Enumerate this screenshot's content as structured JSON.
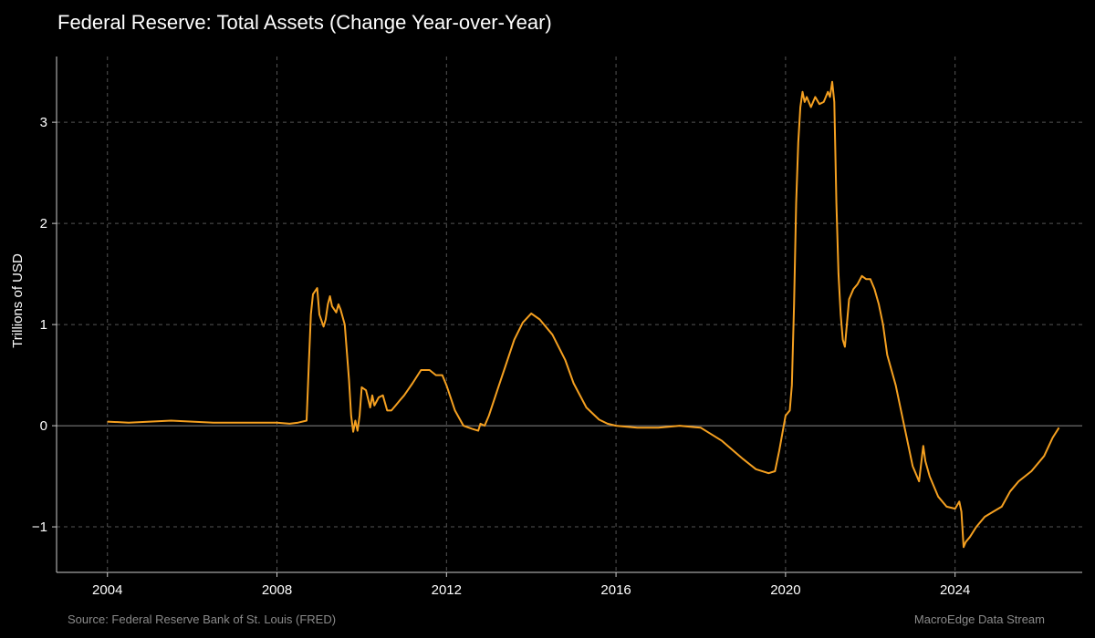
{
  "header": {
    "title": "Federal Reserve: Total Assets (Change Year-over-Year)"
  },
  "footer": {
    "source": "Source: Federal Reserve Bank of St. Louis (FRED)",
    "brand": "MacroEdge Data Stream"
  },
  "colors": {
    "background": "#000000",
    "series": "#f5a020",
    "grid": "#555555",
    "zero_line": "#888888",
    "axis": "#cccccc",
    "footer_text": "#8a8a8a"
  },
  "chart_data": {
    "type": "line",
    "title": "Federal Reserve: Total Assets (Change Year-over-Year)",
    "xlabel": "",
    "ylabel": "Trillions of USD",
    "xlim": [
      2002.8,
      2027.0
    ],
    "ylim": [
      -1.45,
      3.65
    ],
    "x_ticks": [
      2004,
      2008,
      2012,
      2016,
      2020,
      2024
    ],
    "x_tick_labels": [
      "2004",
      "2008",
      "2012",
      "2016",
      "2020",
      "2024"
    ],
    "y_ticks": [
      -1,
      0,
      1,
      2,
      3
    ],
    "y_tick_labels": [
      "−1",
      "0",
      "1",
      "2",
      "3"
    ],
    "grid": true,
    "series": [
      {
        "x": [
          2004.0,
          2004.5,
          2005.0,
          2005.5,
          2006.0,
          2006.5,
          2007.0,
          2007.5,
          2008.0,
          2008.3,
          2008.5,
          2008.7,
          2008.75,
          2008.8,
          2008.85,
          2008.95,
          2009.0,
          2009.1,
          2009.15,
          2009.2,
          2009.25,
          2009.3,
          2009.4,
          2009.45,
          2009.5,
          2009.6,
          2009.7,
          2009.75,
          2009.8,
          2009.85,
          2009.9,
          2009.95,
          2010.0,
          2010.1,
          2010.2,
          2010.25,
          2010.3,
          2010.4,
          2010.5,
          2010.6,
          2010.7,
          2010.8,
          2010.9,
          2011.0,
          2011.2,
          2011.4,
          2011.6,
          2011.75,
          2011.9,
          2012.0,
          2012.2,
          2012.4,
          2012.6,
          2012.75,
          2012.8,
          2012.9,
          2013.0,
          2013.2,
          2013.4,
          2013.6,
          2013.8,
          2014.0,
          2014.2,
          2014.5,
          2014.8,
          2015.0,
          2015.3,
          2015.6,
          2015.8,
          2016.0,
          2016.5,
          2017.0,
          2017.5,
          2018.0,
          2018.5,
          2019.0,
          2019.3,
          2019.6,
          2019.75,
          2019.85,
          2020.0,
          2020.1,
          2020.15,
          2020.2,
          2020.25,
          2020.3,
          2020.35,
          2020.4,
          2020.45,
          2020.5,
          2020.6,
          2020.7,
          2020.8,
          2020.9,
          2021.0,
          2021.05,
          2021.1,
          2021.15,
          2021.2,
          2021.25,
          2021.3,
          2021.35,
          2021.4,
          2021.5,
          2021.6,
          2021.7,
          2021.8,
          2021.9,
          2022.0,
          2022.1,
          2022.2,
          2022.3,
          2022.4,
          2022.6,
          2022.8,
          2023.0,
          2023.15,
          2023.25,
          2023.3,
          2023.4,
          2023.6,
          2023.8,
          2024.0,
          2024.1,
          2024.15,
          2024.2,
          2024.25,
          2024.35,
          2024.5,
          2024.7,
          2024.9,
          2025.1,
          2025.3,
          2025.5,
          2025.8,
          2026.1,
          2026.3,
          2026.45
        ],
        "y": [
          0.04,
          0.03,
          0.04,
          0.05,
          0.04,
          0.03,
          0.03,
          0.03,
          0.03,
          0.02,
          0.03,
          0.05,
          0.6,
          1.1,
          1.3,
          1.36,
          1.1,
          0.98,
          1.05,
          1.2,
          1.28,
          1.18,
          1.12,
          1.2,
          1.15,
          1.0,
          0.45,
          0.1,
          -0.06,
          0.05,
          -0.05,
          0.1,
          0.38,
          0.35,
          0.18,
          0.3,
          0.2,
          0.28,
          0.3,
          0.15,
          0.15,
          0.2,
          0.25,
          0.3,
          0.42,
          0.55,
          0.55,
          0.5,
          0.5,
          0.4,
          0.15,
          0.0,
          -0.03,
          -0.05,
          0.02,
          0.0,
          0.1,
          0.35,
          0.6,
          0.85,
          1.02,
          1.11,
          1.05,
          0.9,
          0.65,
          0.42,
          0.18,
          0.06,
          0.02,
          0.0,
          -0.02,
          -0.02,
          0.0,
          -0.02,
          -0.15,
          -0.33,
          -0.43,
          -0.47,
          -0.45,
          -0.25,
          0.1,
          0.15,
          0.4,
          1.2,
          2.2,
          2.8,
          3.15,
          3.3,
          3.2,
          3.25,
          3.15,
          3.25,
          3.18,
          3.2,
          3.3,
          3.25,
          3.4,
          3.2,
          2.2,
          1.5,
          1.1,
          0.85,
          0.78,
          1.25,
          1.35,
          1.4,
          1.48,
          1.45,
          1.45,
          1.35,
          1.2,
          1.0,
          0.7,
          0.4,
          0.0,
          -0.4,
          -0.55,
          -0.2,
          -0.35,
          -0.5,
          -0.7,
          -0.8,
          -0.82,
          -0.75,
          -0.85,
          -1.2,
          -1.15,
          -1.1,
          -1.0,
          -0.9,
          -0.85,
          -0.8,
          -0.65,
          -0.55,
          -0.45,
          -0.3,
          -0.12,
          -0.02
        ]
      }
    ]
  }
}
